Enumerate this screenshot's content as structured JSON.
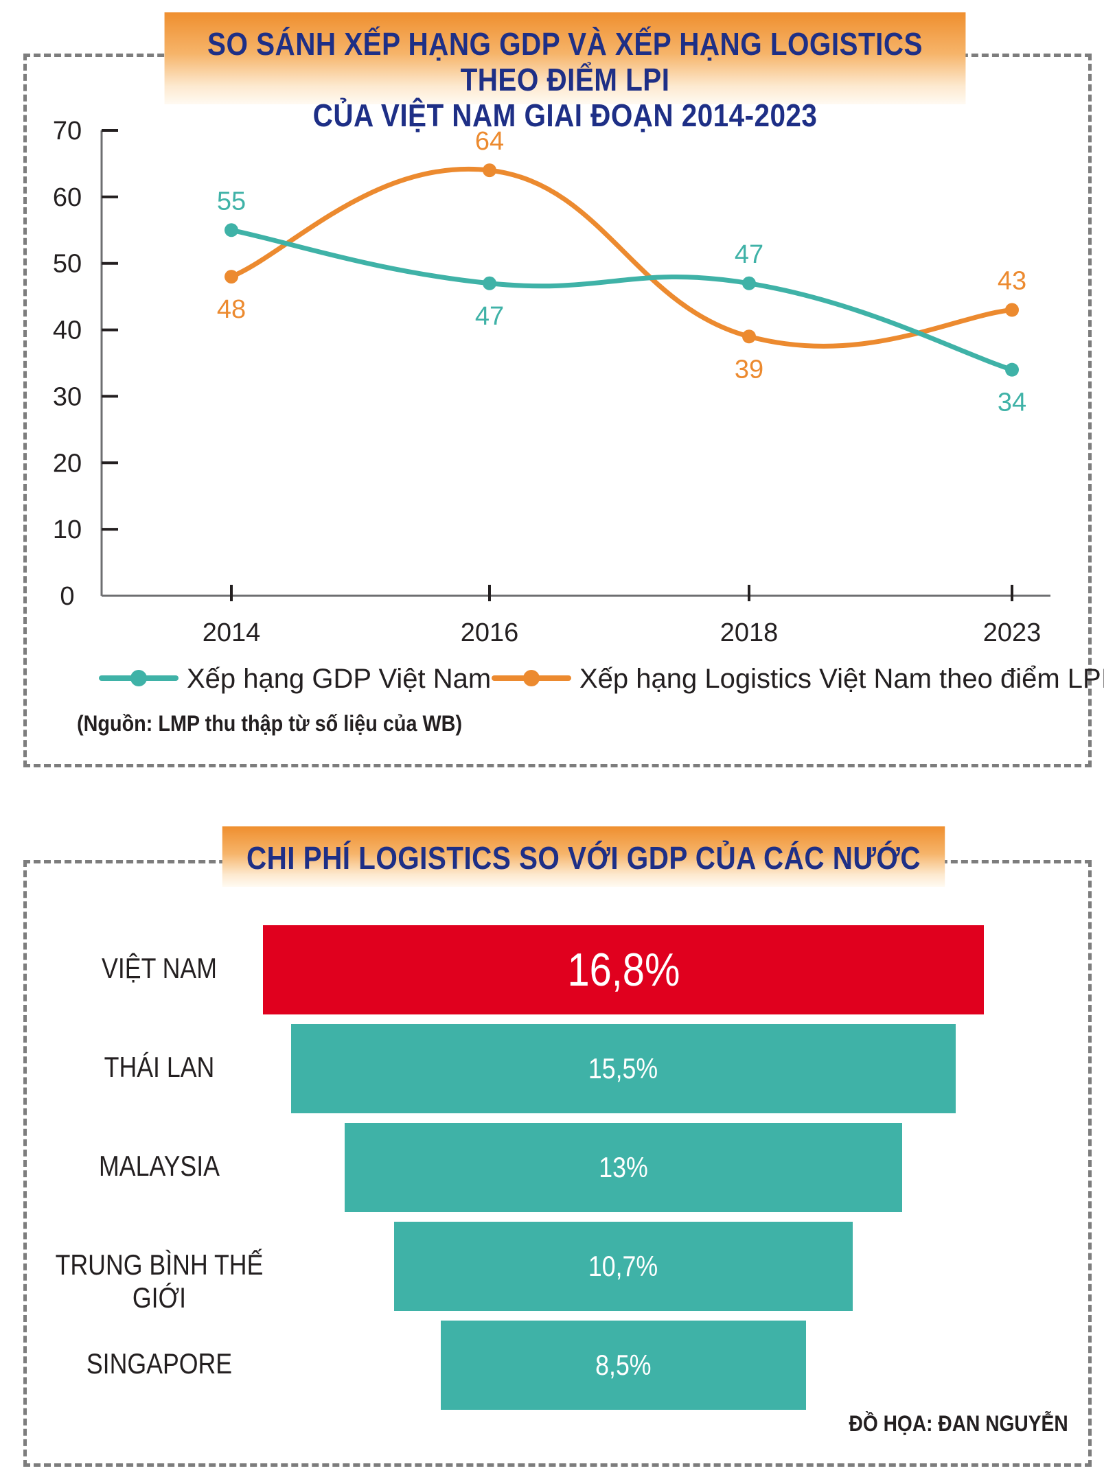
{
  "chart_data": [
    {
      "type": "line",
      "title_line1": "SO SÁNH XẾP HẠNG GDP VÀ XẾP HẠNG LOGISTICS THEO ĐIỂM LPI",
      "title_line2": "CỦA VIỆT NAM GIAI ĐOẠN 2014-2023",
      "categories": [
        "2014",
        "2016",
        "2018",
        "2023"
      ],
      "yticks": [
        0,
        10,
        20,
        30,
        40,
        50,
        60,
        70
      ],
      "ylim": [
        0,
        70
      ],
      "series": [
        {
          "name": "Xếp hạng GDP Việt Nam",
          "color": "#3fb2a7",
          "values": [
            55,
            47,
            47,
            34
          ]
        },
        {
          "name": "Xếp hạng Logistics Việt Nam theo điểm LPI",
          "color": "#ec8a2f",
          "values": [
            48,
            64,
            39,
            43
          ]
        }
      ],
      "source": "(Nguồn: LMP thu thập từ số liệu của WB)"
    },
    {
      "type": "bar",
      "title": "CHI PHÍ LOGISTICS SO VỚI GDP CỦA CÁC NƯỚC",
      "categories": [
        "VIỆT NAM",
        "THÁI LAN",
        "MALAYSIA",
        "TRUNG BÌNH THẾ GIỚI",
        "SINGAPORE"
      ],
      "values": [
        16.8,
        15.5,
        13,
        10.7,
        8.5
      ],
      "value_labels": [
        "16,8%",
        "15,5%",
        "13%",
        "10,7%",
        "8,5%"
      ],
      "colors": [
        "#e0001e",
        "#3fb2a7",
        "#3fb2a7",
        "#3fb2a7",
        "#3fb2a7"
      ],
      "unit": "%"
    }
  ],
  "credit": "ĐỒ HỌA: ĐAN NGUYỄN"
}
